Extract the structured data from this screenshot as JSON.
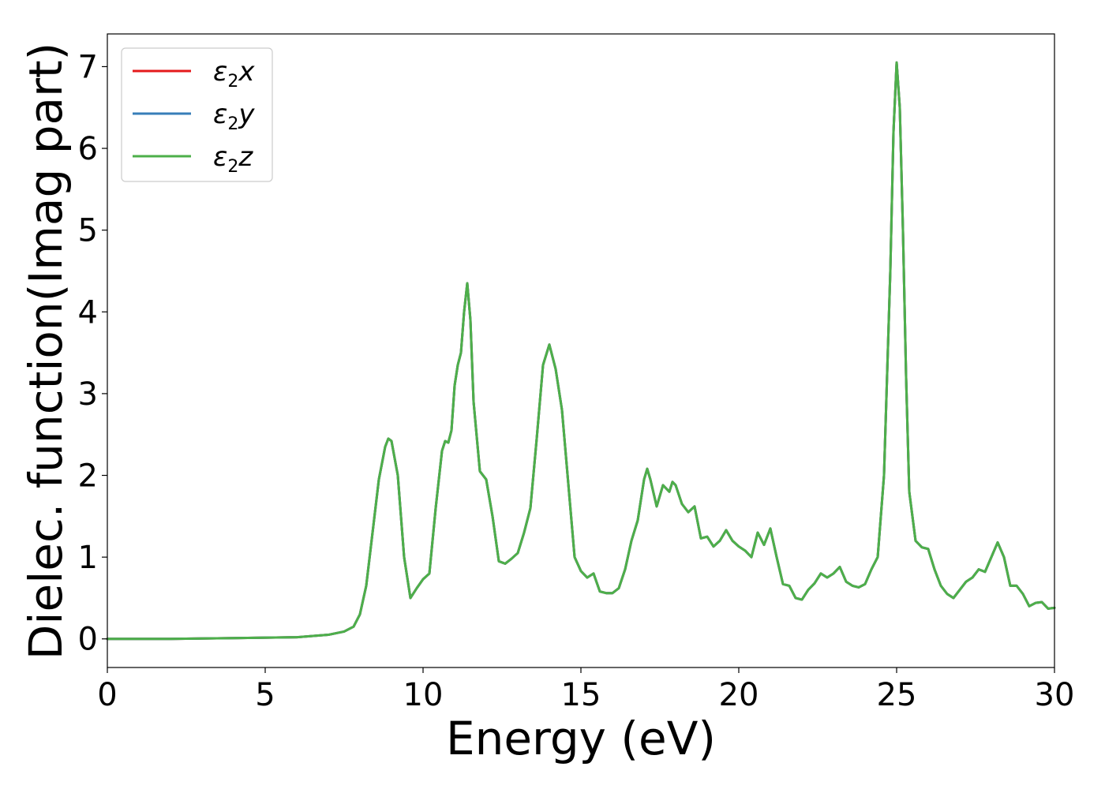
{
  "chart_data": {
    "type": "line",
    "title": "",
    "xlabel": "Energy (eV)",
    "ylabel": "Dielec. function(Imag part)",
    "xlim": [
      0,
      30
    ],
    "ylim": [
      -0.35,
      7.4
    ],
    "xticks": [
      0,
      5,
      10,
      15,
      20,
      25,
      30
    ],
    "yticks": [
      0,
      1,
      2,
      3,
      4,
      5,
      6,
      7
    ],
    "grid": false,
    "legend_position": "top-left",
    "x": [
      0,
      2,
      4,
      6,
      7,
      7.5,
      7.8,
      8.0,
      8.2,
      8.4,
      8.6,
      8.8,
      8.9,
      9.0,
      9.2,
      9.4,
      9.6,
      9.8,
      10.0,
      10.2,
      10.4,
      10.6,
      10.7,
      10.8,
      10.9,
      11.0,
      11.1,
      11.2,
      11.3,
      11.4,
      11.5,
      11.6,
      11.8,
      12.0,
      12.2,
      12.4,
      12.6,
      12.8,
      13.0,
      13.2,
      13.4,
      13.6,
      13.8,
      14.0,
      14.2,
      14.4,
      14.6,
      14.8,
      15.0,
      15.2,
      15.4,
      15.6,
      15.8,
      16.0,
      16.2,
      16.4,
      16.6,
      16.8,
      17.0,
      17.1,
      17.2,
      17.4,
      17.6,
      17.8,
      17.9,
      18.0,
      18.2,
      18.4,
      18.6,
      18.8,
      19.0,
      19.2,
      19.4,
      19.6,
      19.8,
      20.0,
      20.2,
      20.4,
      20.6,
      20.8,
      21.0,
      21.2,
      21.4,
      21.6,
      21.8,
      22.0,
      22.2,
      22.4,
      22.6,
      22.8,
      23.0,
      23.2,
      23.4,
      23.6,
      23.8,
      24.0,
      24.2,
      24.4,
      24.6,
      24.8,
      24.9,
      25.0,
      25.1,
      25.2,
      25.3,
      25.4,
      25.6,
      25.8,
      26.0,
      26.2,
      26.4,
      26.6,
      26.8,
      27.0,
      27.2,
      27.4,
      27.6,
      27.8,
      28.0,
      28.2,
      28.4,
      28.6,
      28.8,
      29.0,
      29.2,
      29.4,
      29.6,
      29.8,
      30.0
    ],
    "series": [
      {
        "name": "ε₂x",
        "label_main": "ε",
        "label_sub": "2",
        "label_axis": "x",
        "color": "#e41a1c",
        "values": [
          0.0,
          0.0,
          0.01,
          0.02,
          0.05,
          0.09,
          0.15,
          0.3,
          0.65,
          1.3,
          1.95,
          2.35,
          2.45,
          2.42,
          2.0,
          1.0,
          0.5,
          0.62,
          0.73,
          0.8,
          1.6,
          2.3,
          2.42,
          2.4,
          2.55,
          3.1,
          3.35,
          3.5,
          4.0,
          4.35,
          3.9,
          2.9,
          2.05,
          1.95,
          1.5,
          0.95,
          0.92,
          0.98,
          1.05,
          1.3,
          1.6,
          2.45,
          3.35,
          3.6,
          3.3,
          2.8,
          1.9,
          1.0,
          0.83,
          0.75,
          0.8,
          0.58,
          0.56,
          0.56,
          0.62,
          0.85,
          1.2,
          1.45,
          1.95,
          2.08,
          1.95,
          1.62,
          1.88,
          1.8,
          1.92,
          1.88,
          1.65,
          1.55,
          1.62,
          1.23,
          1.25,
          1.13,
          1.2,
          1.33,
          1.2,
          1.13,
          1.08,
          1.0,
          1.3,
          1.15,
          1.35,
          1.0,
          0.67,
          0.65,
          0.5,
          0.48,
          0.6,
          0.68,
          0.8,
          0.75,
          0.8,
          0.88,
          0.7,
          0.65,
          0.63,
          0.67,
          0.85,
          1.0,
          2.0,
          4.5,
          6.2,
          7.05,
          6.5,
          5.0,
          3.2,
          1.8,
          1.2,
          1.12,
          1.1,
          0.85,
          0.65,
          0.55,
          0.5,
          0.6,
          0.7,
          0.75,
          0.85,
          0.82,
          1.0,
          1.18,
          1.0,
          0.65,
          0.65,
          0.55,
          0.4,
          0.44,
          0.45,
          0.37,
          0.38
        ]
      },
      {
        "name": "ε₂y",
        "label_main": "ε",
        "label_sub": "2",
        "label_axis": "y",
        "color": "#377eb8",
        "values": [
          0.0,
          0.0,
          0.01,
          0.02,
          0.05,
          0.09,
          0.15,
          0.3,
          0.65,
          1.3,
          1.95,
          2.35,
          2.45,
          2.42,
          2.0,
          1.0,
          0.5,
          0.62,
          0.73,
          0.8,
          1.6,
          2.3,
          2.42,
          2.4,
          2.55,
          3.1,
          3.35,
          3.5,
          4.0,
          4.35,
          3.9,
          2.9,
          2.05,
          1.95,
          1.5,
          0.95,
          0.92,
          0.98,
          1.05,
          1.3,
          1.6,
          2.45,
          3.35,
          3.6,
          3.3,
          2.8,
          1.9,
          1.0,
          0.83,
          0.75,
          0.8,
          0.58,
          0.56,
          0.56,
          0.62,
          0.85,
          1.2,
          1.45,
          1.95,
          2.08,
          1.95,
          1.62,
          1.88,
          1.8,
          1.92,
          1.88,
          1.65,
          1.55,
          1.62,
          1.23,
          1.25,
          1.13,
          1.2,
          1.33,
          1.2,
          1.13,
          1.08,
          1.0,
          1.3,
          1.15,
          1.35,
          1.0,
          0.67,
          0.65,
          0.5,
          0.48,
          0.6,
          0.68,
          0.8,
          0.75,
          0.8,
          0.88,
          0.7,
          0.65,
          0.63,
          0.67,
          0.85,
          1.0,
          2.0,
          4.5,
          6.2,
          7.05,
          6.5,
          5.0,
          3.2,
          1.8,
          1.2,
          1.12,
          1.1,
          0.85,
          0.65,
          0.55,
          0.5,
          0.6,
          0.7,
          0.75,
          0.85,
          0.82,
          1.0,
          1.18,
          1.0,
          0.65,
          0.65,
          0.55,
          0.4,
          0.44,
          0.45,
          0.37,
          0.38
        ]
      },
      {
        "name": "ε₂z",
        "label_main": "ε",
        "label_sub": "2",
        "label_axis": "z",
        "color": "#4daf4a",
        "values": [
          0.0,
          0.0,
          0.01,
          0.02,
          0.05,
          0.09,
          0.15,
          0.3,
          0.65,
          1.3,
          1.95,
          2.35,
          2.45,
          2.42,
          2.0,
          1.0,
          0.5,
          0.62,
          0.73,
          0.8,
          1.6,
          2.3,
          2.42,
          2.4,
          2.55,
          3.1,
          3.35,
          3.5,
          4.0,
          4.35,
          3.9,
          2.9,
          2.05,
          1.95,
          1.5,
          0.95,
          0.92,
          0.98,
          1.05,
          1.3,
          1.6,
          2.45,
          3.35,
          3.6,
          3.3,
          2.8,
          1.9,
          1.0,
          0.83,
          0.75,
          0.8,
          0.58,
          0.56,
          0.56,
          0.62,
          0.85,
          1.2,
          1.45,
          1.95,
          2.08,
          1.95,
          1.62,
          1.88,
          1.8,
          1.92,
          1.88,
          1.65,
          1.55,
          1.62,
          1.23,
          1.25,
          1.13,
          1.2,
          1.33,
          1.2,
          1.13,
          1.08,
          1.0,
          1.3,
          1.15,
          1.35,
          1.0,
          0.67,
          0.65,
          0.5,
          0.48,
          0.6,
          0.68,
          0.8,
          0.75,
          0.8,
          0.88,
          0.7,
          0.65,
          0.63,
          0.67,
          0.85,
          1.0,
          2.0,
          4.5,
          6.2,
          7.05,
          6.5,
          5.0,
          3.2,
          1.8,
          1.2,
          1.12,
          1.1,
          0.85,
          0.65,
          0.55,
          0.5,
          0.6,
          0.7,
          0.75,
          0.85,
          0.82,
          1.0,
          1.18,
          1.0,
          0.65,
          0.65,
          0.55,
          0.4,
          0.44,
          0.45,
          0.37,
          0.38
        ]
      }
    ]
  }
}
